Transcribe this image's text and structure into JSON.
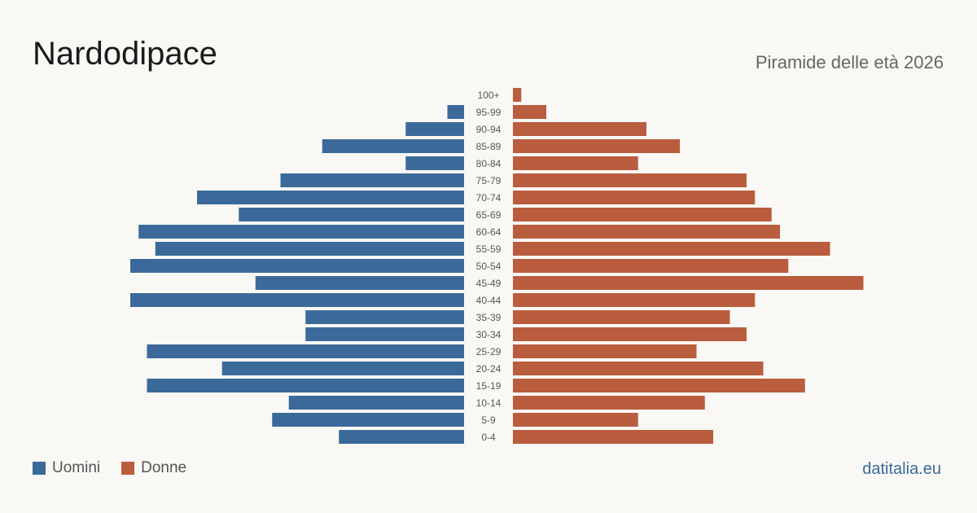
{
  "title": "Nardodipace",
  "subtitle": "Piramide delle età 2026",
  "source": "datitalia.eu",
  "colors": {
    "men": "#3b6a9a",
    "women": "#b95d3e",
    "tick": "#555555"
  },
  "chart_data": {
    "type": "bar",
    "orientation": "horizontal-pyramid",
    "categories": [
      "100+",
      "95-99",
      "90-94",
      "85-89",
      "80-84",
      "75-79",
      "70-74",
      "65-69",
      "60-64",
      "55-59",
      "50-54",
      "45-49",
      "40-44",
      "35-39",
      "30-34",
      "25-29",
      "20-24",
      "15-19",
      "10-14",
      "5-9",
      "0-4"
    ],
    "series": [
      {
        "name": "Uomini",
        "values": [
          0,
          1,
          3.5,
          8.5,
          3.5,
          11,
          16,
          13.5,
          19.5,
          18.5,
          20,
          12.5,
          20,
          9.5,
          9.5,
          19,
          14.5,
          19,
          10.5,
          11.5,
          7.5
        ]
      },
      {
        "name": "Donne",
        "values": [
          0.5,
          2,
          8,
          10,
          7.5,
          14,
          14.5,
          15.5,
          16,
          19,
          16.5,
          21,
          14.5,
          13,
          14,
          11,
          15,
          17.5,
          11.5,
          7.5,
          12
        ]
      }
    ],
    "legend": "bottom-left",
    "grid": false
  }
}
